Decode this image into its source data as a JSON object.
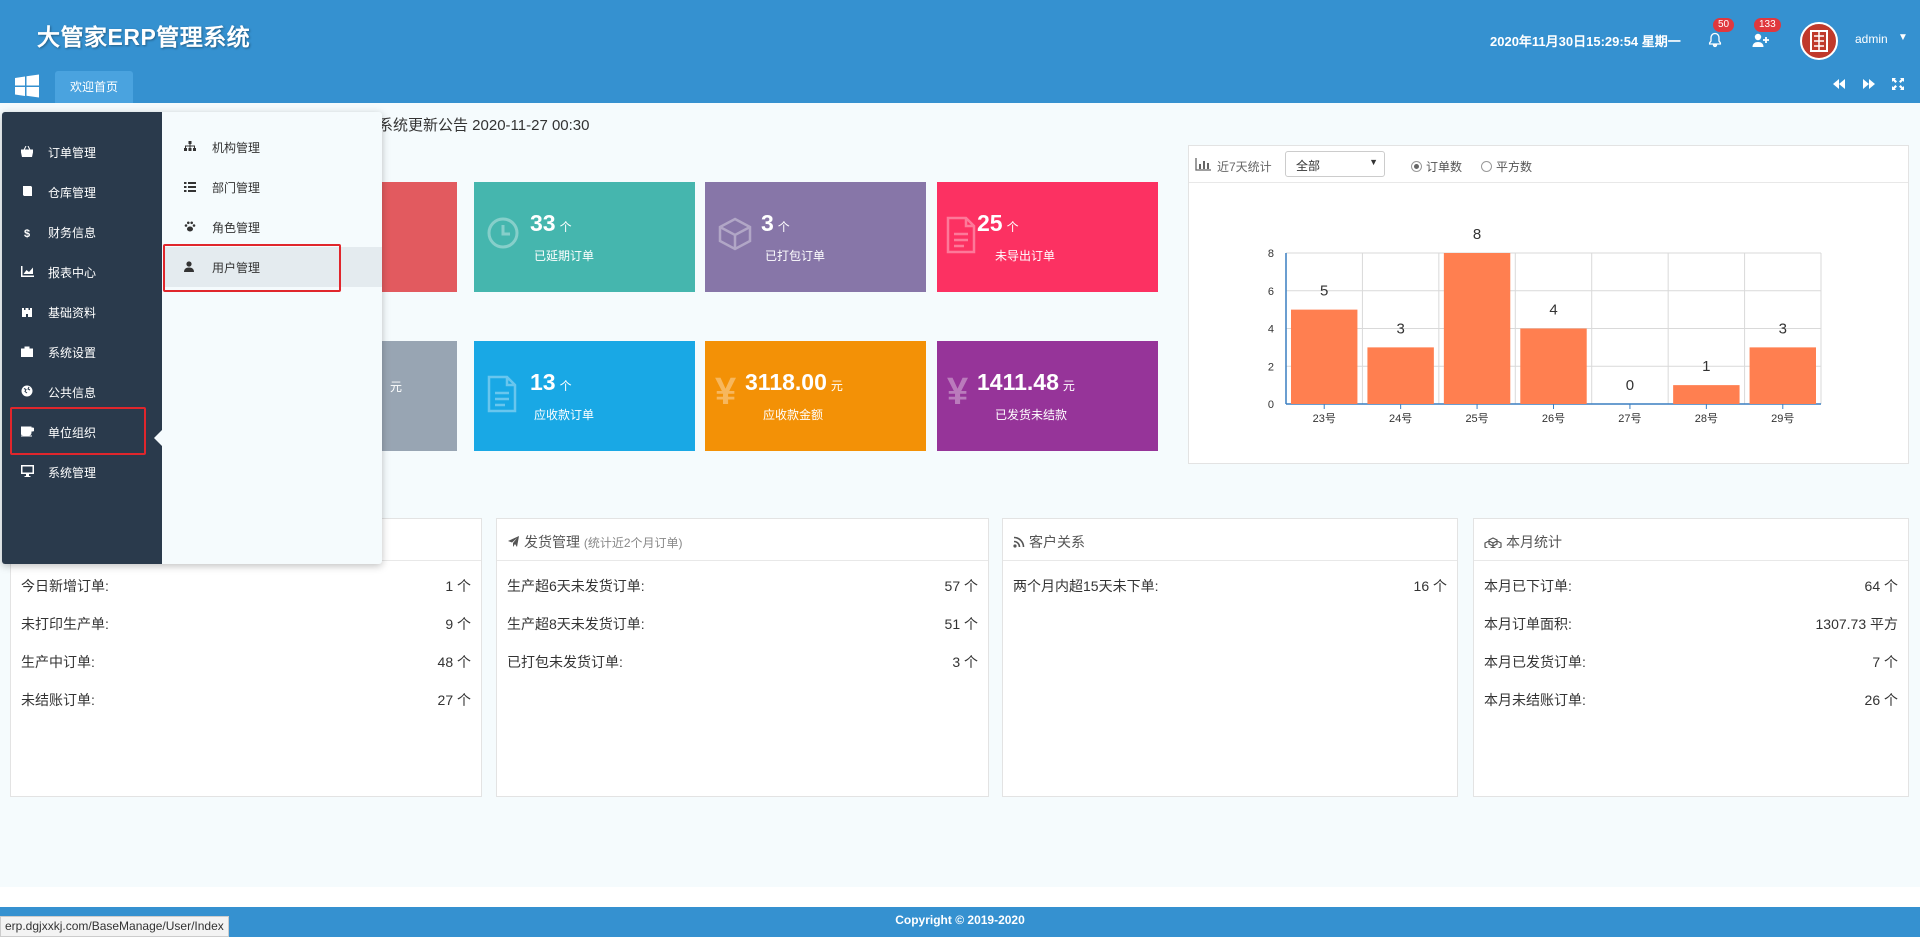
{
  "header": {
    "title": "大管家ERP管理系统",
    "datetime": "2020年11月30日15:29:54 星期一",
    "bell_badge": "50",
    "user_badge": "133",
    "username": "admin",
    "accent": "#3591d0"
  },
  "tabs": {
    "home": "欢迎首页"
  },
  "notice": "系统更新公告 2020-11-27 00:30",
  "cards_row1": [
    {
      "value": "33",
      "unit": "个",
      "label": "已延期订单",
      "color": "#45b6ae",
      "icon": "clock-icon"
    },
    {
      "value": "3",
      "unit": "个",
      "label": "已打包订单",
      "color": "#8776a8",
      "icon": "box-icon"
    },
    {
      "value": "25",
      "unit": "个",
      "label": "未导出订单",
      "color": "#fc3162",
      "icon": "file-icon"
    }
  ],
  "cards_row2": [
    {
      "unit": "元"
    },
    {
      "value": "13",
      "unit": "个",
      "label": "应收款订单",
      "color": "#19a8e5",
      "icon": "doc-icon"
    },
    {
      "value": "3118.00",
      "unit": "元",
      "label": "应收款金额",
      "color": "#f39106",
      "icon": "yen-icon"
    },
    {
      "value": "1411.48",
      "unit": "元",
      "label": "已发货未结款",
      "color": "#963499",
      "icon": "yen-icon"
    }
  ],
  "chart": {
    "title": "近7天统计",
    "select_value": "全部",
    "radio_orders": "订单数",
    "radio_area": "平方数"
  },
  "chart_data": {
    "type": "bar",
    "categories": [
      "23号",
      "24号",
      "25号",
      "26号",
      "27号",
      "28号",
      "29号"
    ],
    "values": [
      5,
      3,
      8,
      4,
      0,
      1,
      3
    ],
    "ylim": [
      0,
      8
    ],
    "yticks": [
      0,
      2,
      4,
      6,
      8
    ],
    "color": "#ff7f50",
    "grid": true
  },
  "panels": {
    "order": {
      "rows": [
        {
          "label": "今日新增订单:",
          "value": "1 个"
        },
        {
          "label": "未打印生产单:",
          "value": "9 个"
        },
        {
          "label": "生产中订单:",
          "value": "48 个"
        },
        {
          "label": "未结账订单:",
          "value": "27 个"
        }
      ]
    },
    "shipping": {
      "title": "发货管理",
      "subtitle": "(统计近2个月订单)",
      "rows": [
        {
          "label": "生产超6天未发货订单:",
          "value": "57 个"
        },
        {
          "label": "生产超8天未发货订单:",
          "value": "51 个"
        },
        {
          "label": "已打包未发货订单:",
          "value": "3 个"
        }
      ]
    },
    "customer": {
      "title": "客户关系",
      "rows": [
        {
          "label": "两个月内超15天未下单:",
          "value": "16 个"
        }
      ]
    },
    "month": {
      "title": "本月统计",
      "rows": [
        {
          "label": "本月已下订单:",
          "value": "64 个"
        },
        {
          "label": "本月订单面积:",
          "value": "1307.73 平方"
        },
        {
          "label": "本月已发货订单:",
          "value": "7 个"
        },
        {
          "label": "本月未结账订单:",
          "value": "26 个"
        }
      ]
    }
  },
  "menu": {
    "items": [
      {
        "label": "订单管理",
        "icon": "basket-icon"
      },
      {
        "label": "仓库管理",
        "icon": "book-icon"
      },
      {
        "label": "财务信息",
        "icon": "dollar-icon"
      },
      {
        "label": "报表中心",
        "icon": "chart-icon"
      },
      {
        "label": "基础资料",
        "icon": "castle-icon"
      },
      {
        "label": "系统设置",
        "icon": "briefcase-icon"
      },
      {
        "label": "公共信息",
        "icon": "globe-icon"
      },
      {
        "label": "单位组织",
        "icon": "cup-icon"
      },
      {
        "label": "系统管理",
        "icon": "monitor-icon"
      }
    ],
    "sub_items": [
      {
        "label": "机构管理",
        "icon": "sitemap-icon"
      },
      {
        "label": "部门管理",
        "icon": "list-icon"
      },
      {
        "label": "角色管理",
        "icon": "paw-icon"
      },
      {
        "label": "用户管理",
        "icon": "user-icon"
      }
    ]
  },
  "footer": {
    "copyright": "Copyright © 2019-2020"
  },
  "status_url": "erp.dgjxxkj.com/BaseManage/User/Index"
}
